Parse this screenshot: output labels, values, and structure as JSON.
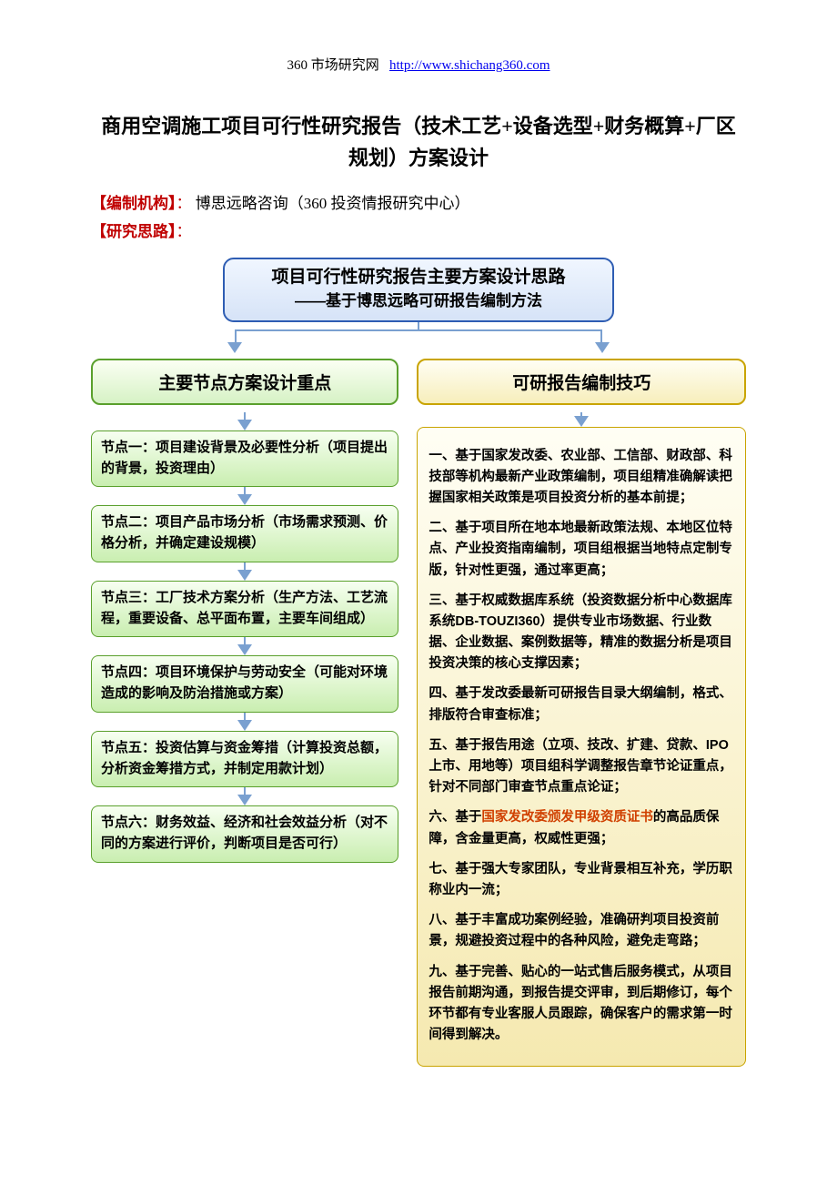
{
  "header": {
    "site_name": "360 市场研究网",
    "site_url_text": "http://www.shichang360.com"
  },
  "title": "商用空调施工项目可行性研究报告（技术工艺+设备选型+财务概算+厂区规划）方案设计",
  "meta": {
    "org_label": "【编制机构】",
    "org_value": "博思远略咨询（360 投资情报研究中心）",
    "thinking_label": "【研究思路】"
  },
  "flowchart": {
    "type": "flowchart",
    "top_banner_line1": "项目可行性研究报告主要方案设计思路",
    "top_banner_line2": "——基于博思远略可研报告编制方法",
    "left_header": "主要节点方案设计重点",
    "right_header": "可研报告编制技巧",
    "colors": {
      "top_border": "#2e5db3",
      "top_bg_start": "#f0f6ff",
      "top_bg_end": "#d6e3f7",
      "green_border": "#5aa02c",
      "green_bg_start": "#f7fff1",
      "green_bg_end": "#c9eeb0",
      "yellow_border": "#c9a400",
      "yellow_bg_start": "#fffef4",
      "yellow_bg_end": "#f5e9b0",
      "connector": "#7aa0d0",
      "highlight_text": "#d04000",
      "meta_label": "#c00000"
    },
    "fontsize": {
      "banner": 19,
      "col_header": 19,
      "node": 15,
      "yellow": 14.5
    },
    "nodes": [
      "节点一：项目建设背景及必要性分析（项目提出的背景，投资理由）",
      "节点二：项目产品市场分析（市场需求预测、价格分析，并确定建设规模）",
      "节点三：工厂技术方案分析（生产方法、工艺流程，重要设备、总平面布置，主要车间组成）",
      "节点四：项目环境保护与劳动安全（可能对环境造成的影响及防治措施或方案）",
      "节点五：投资估算与资金筹措（计算投资总额，分析资金筹措方式，并制定用款计划）",
      "节点六：财务效益、经济和社会效益分析（对不同的方案进行评价，判断项目是否可行）"
    ],
    "techniques": [
      {
        "text": "一、基于国家发改委、农业部、工信部、财政部、科技部等机构最新产业政策编制，项目组精准确解读把握国家相关政策是项目投资分析的基本前提；"
      },
      {
        "text": "二、基于项目所在地本地最新政策法规、本地区位特点、产业投资指南编制，项目组根据当地特点定制专版，针对性更强，通过率更高；"
      },
      {
        "text": "三、基于权威数据库系统（投资数据分析中心数据库系统DB-TOUZI360）提供专业市场数据、行业数据、企业数据、案例数据等，精准的数据分析是项目投资决策的核心支撑因素；"
      },
      {
        "text": "四、基于发改委最新可研报告目录大纲编制，格式、排版符合审查标准；"
      },
      {
        "text": "五、基于报告用途（立项、技改、扩建、贷款、IPO上市、用地等）项目组科学调整报告章节论证重点，针对不同部门审查节点重点论证；"
      },
      {
        "prefix": "六、基于",
        "hl": "国家发改委颁发甲级资质证书",
        "suffix": "的高品质保障，含金量更高，权威性更强；"
      },
      {
        "text": "七、基于强大专家团队，专业背景相互补充，学历职称业内一流；"
      },
      {
        "text": "八、基于丰富成功案例经验，准确研判项目投资前景，规避投资过程中的各种风险，避免走弯路；"
      },
      {
        "text": "九、基于完善、贴心的一站式售后服务模式，从项目报告前期沟通，到报告提交评审，到后期修订，每个环节都有专业客服人员跟踪，确保客户的需求第一时间得到解决。"
      }
    ]
  }
}
